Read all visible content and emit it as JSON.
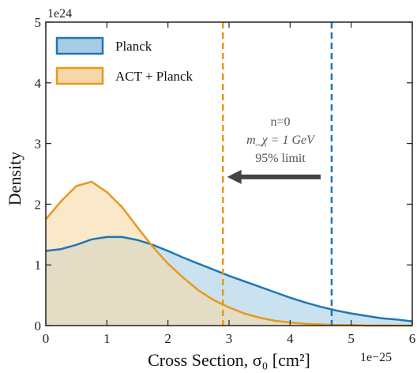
{
  "chart_data": {
    "type": "area",
    "xlabel": "Cross Section, σ₀ [cm²]",
    "ylabel": "Density",
    "x_scale_label": "1e−25",
    "y_scale_label": "1e24",
    "xlim": [
      0,
      6
    ],
    "ylim": [
      0,
      5
    ],
    "xticks": [
      "0",
      "1",
      "2",
      "3",
      "4",
      "5",
      "6"
    ],
    "yticks": [
      "0",
      "1",
      "2",
      "3",
      "4",
      "5"
    ],
    "grid": false,
    "legend_position": "top-left",
    "series": [
      {
        "name": "Planck",
        "color": "#1f77b4",
        "fill": "#a6cde6",
        "x": [
          0,
          0.25,
          0.5,
          0.75,
          1.0,
          1.25,
          1.5,
          1.75,
          2.0,
          2.25,
          2.5,
          2.75,
          3.0,
          3.25,
          3.5,
          3.75,
          4.0,
          4.25,
          4.5,
          4.75,
          5.0,
          5.25,
          5.5,
          5.75,
          6.0
        ],
        "values": [
          1.23,
          1.26,
          1.33,
          1.42,
          1.46,
          1.46,
          1.41,
          1.33,
          1.23,
          1.12,
          1.02,
          0.92,
          0.82,
          0.73,
          0.64,
          0.55,
          0.46,
          0.38,
          0.31,
          0.25,
          0.2,
          0.16,
          0.12,
          0.1,
          0.07
        ],
        "limit_95": 4.68
      },
      {
        "name": "ACT + Planck",
        "color": "#e69a1a",
        "fill": "#f6d8a8",
        "x": [
          0,
          0.25,
          0.5,
          0.75,
          1.0,
          1.25,
          1.5,
          1.75,
          2.0,
          2.25,
          2.5,
          2.75,
          3.0,
          3.25,
          3.5,
          3.75,
          4.0,
          4.25,
          4.5,
          4.75,
          5.0,
          5.25,
          5.5,
          5.75,
          6.0
        ],
        "values": [
          1.75,
          2.05,
          2.3,
          2.37,
          2.2,
          1.95,
          1.62,
          1.3,
          1.02,
          0.79,
          0.58,
          0.42,
          0.3,
          0.2,
          0.13,
          0.08,
          0.05,
          0.03,
          0.02,
          0.01,
          0.01,
          0.0,
          0.0,
          0.0,
          0.0
        ],
        "limit_95": 2.9
      }
    ],
    "annotation": {
      "lines": [
        "n=0",
        "m_χ = 1 GeV",
        "95% limit"
      ],
      "arrow_from_x": 4.5,
      "arrow_to_x": 2.97,
      "arrow_y": 2.45,
      "arrow_color": "#444444"
    }
  }
}
